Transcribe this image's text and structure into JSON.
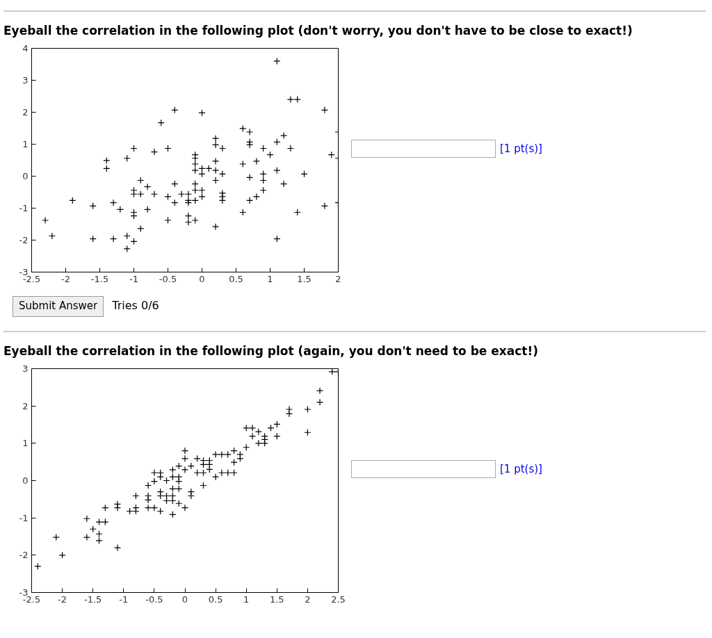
{
  "chart_data": [
    {
      "type": "scatter",
      "title": "Eyeball the correlation in the following plot (don't worry, you don't have to be close to exact!)",
      "annotations": [
        "[1 pt(s)]",
        "Submit Answer",
        "Tries 0/6"
      ],
      "marker": "cross",
      "grid": false,
      "color": "#000000",
      "xlim": [
        -2.5,
        2
      ],
      "ylim": [
        -3,
        4
      ],
      "xticks": [
        -2.5,
        -2,
        -1.5,
        -1,
        -0.5,
        0,
        0.5,
        1,
        1.5,
        2
      ],
      "yticks": [
        -3,
        -2,
        -1,
        0,
        1,
        2,
        3,
        4
      ],
      "x": [
        1.1,
        1.3,
        1.4,
        1.8,
        -0.6,
        -0.4,
        0.0,
        0.6,
        0.7,
        0.2,
        0.2,
        0.3,
        0.7,
        0.7,
        0.9,
        1.0,
        1.1,
        1.2,
        1.3,
        2.0,
        1.9,
        2.0,
        -1.4,
        -1.4,
        -1.1,
        -1.0,
        -0.7,
        -0.5,
        -0.1,
        -0.1,
        -0.1,
        -0.1,
        0.0,
        0.0,
        0.1,
        0.2,
        0.2,
        0.3,
        0.2,
        0.6,
        0.8,
        0.7,
        0.9,
        0.9,
        0.9,
        1.1,
        1.2,
        1.5,
        -0.9,
        -0.8,
        -1.0,
        -1.0,
        -0.9,
        -0.7,
        -0.4,
        -0.5,
        -0.4,
        -0.3,
        -0.2,
        -0.2,
        -0.2,
        -0.1,
        -0.1,
        0.0,
        0.0,
        -0.1,
        0.3,
        0.3,
        0.3,
        0.7,
        0.8,
        -1.9,
        -1.6,
        -1.3,
        -1.2,
        -1.0,
        -1.0,
        -0.8,
        -2.3,
        -0.5,
        -0.2,
        -0.2,
        -0.1,
        0.6,
        1.4,
        1.8,
        2.0,
        -0.9,
        0.2,
        -2.2,
        -1.6,
        -1.3,
        -1.1,
        -1.0,
        -1.1,
        1.1
      ],
      "values": [
        3.6,
        2.4,
        2.4,
        2.07,
        1.67,
        2.07,
        1.98,
        1.49,
        1.38,
        1.18,
        0.98,
        0.87,
        1.07,
        0.98,
        0.87,
        0.67,
        1.07,
        1.27,
        0.87,
        1.38,
        0.67,
        0.56,
        0.49,
        0.24,
        0.56,
        0.87,
        0.76,
        0.87,
        0.67,
        0.56,
        0.38,
        0.18,
        0.24,
        0.07,
        0.24,
        0.47,
        0.18,
        0.07,
        -0.13,
        0.38,
        0.47,
        -0.04,
        0.07,
        -0.13,
        -0.44,
        0.18,
        -0.24,
        0.07,
        -0.13,
        -0.33,
        -0.44,
        -0.56,
        -0.56,
        -0.56,
        -0.24,
        -0.64,
        -0.83,
        -0.56,
        -0.56,
        -0.76,
        -0.83,
        -0.24,
        -0.44,
        -0.44,
        -0.64,
        -0.76,
        -0.53,
        -0.64,
        -0.76,
        -0.76,
        -0.64,
        -0.76,
        -0.93,
        -0.83,
        -1.04,
        -1.13,
        -1.24,
        -1.04,
        -1.38,
        -1.38,
        -1.24,
        -1.44,
        -1.38,
        -1.13,
        -1.13,
        -0.93,
        -0.83,
        -1.64,
        -1.58,
        -1.87,
        -1.96,
        -1.96,
        -1.87,
        -2.04,
        -2.27,
        -1.96
      ]
    },
    {
      "type": "scatter",
      "title": "Eyeball the correlation in the following plot (again, you don't need to be exact!)",
      "annotations": [
        "[1 pt(s)]"
      ],
      "marker": "cross",
      "grid": false,
      "color": "#000000",
      "xlim": [
        -2.5,
        2.5
      ],
      "ylim": [
        -3,
        3
      ],
      "xticks": [
        -2.5,
        -2,
        -1.5,
        -1,
        -0.5,
        0,
        0.5,
        1,
        1.5,
        2,
        2.5
      ],
      "yticks": [
        -3,
        -2,
        -1,
        0,
        1,
        2,
        3
      ],
      "x": [
        2.4,
        2.5,
        2.2,
        2.2,
        1.7,
        1.7,
        2.0,
        2.0,
        1.0,
        1.1,
        1.2,
        1.1,
        1.3,
        1.3,
        1.3,
        1.2,
        1.4,
        1.5,
        1.5,
        1.0,
        0.9,
        0.9,
        0.8,
        0.8,
        0.5,
        0.6,
        0.7,
        0.6,
        0.7,
        0.8,
        0.5,
        0.0,
        0.0,
        0.2,
        0.1,
        0.0,
        -0.2,
        -0.1,
        -0.2,
        -0.1,
        -0.3,
        -0.5,
        -0.4,
        -0.4,
        0.3,
        0.4,
        0.3,
        0.4,
        0.2,
        0.3,
        0.4,
        -0.5,
        -0.1,
        0.3,
        -0.6,
        -0.2,
        -0.1,
        0.1,
        0.1,
        -0.4,
        -0.8,
        -0.6,
        -0.6,
        -0.4,
        -0.3,
        -0.2,
        -0.3,
        -0.2,
        -0.1,
        0.0,
        -0.6,
        -0.5,
        -0.4,
        -0.2,
        -1.1,
        -1.1,
        -1.3,
        -0.9,
        -0.8,
        -0.8,
        -1.6,
        -1.4,
        -1.3,
        -1.5,
        -1.4,
        -1.4,
        -1.6,
        -2.1,
        -1.1,
        -2.0,
        -2.4
      ],
      "values": [
        2.92,
        2.92,
        2.41,
        2.1,
        1.91,
        1.79,
        1.91,
        1.29,
        1.41,
        1.41,
        1.31,
        1.19,
        1.19,
        1.1,
        1.0,
        1.0,
        1.41,
        1.51,
        1.19,
        0.89,
        0.7,
        0.59,
        0.8,
        0.49,
        0.7,
        0.7,
        0.7,
        0.21,
        0.21,
        0.21,
        0.1,
        0.8,
        0.59,
        0.59,
        0.39,
        0.29,
        0.29,
        0.39,
        0.1,
        0.1,
        0.0,
        0.21,
        0.21,
        0.1,
        0.54,
        0.54,
        0.43,
        0.43,
        0.21,
        0.21,
        0.3,
        -0.02,
        -0.02,
        -0.13,
        -0.13,
        -0.22,
        -0.22,
        -0.3,
        -0.41,
        -0.3,
        -0.41,
        -0.41,
        -0.52,
        -0.41,
        -0.41,
        -0.41,
        -0.54,
        -0.54,
        -0.61,
        -0.73,
        -0.73,
        -0.73,
        -0.82,
        -0.91,
        -0.63,
        -0.73,
        -0.73,
        -0.82,
        -0.82,
        -0.73,
        -1.02,
        -1.11,
        -1.11,
        -1.3,
        -1.43,
        -1.61,
        -1.52,
        -1.52,
        -1.8,
        -2.0,
        -2.3
      ]
    }
  ]
}
